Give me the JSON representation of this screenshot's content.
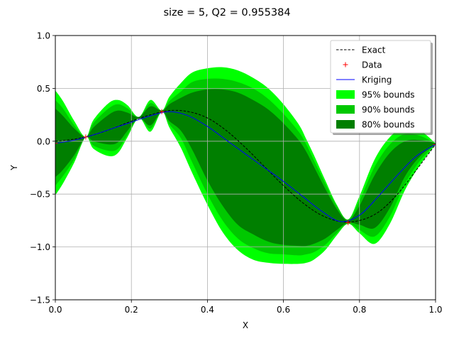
{
  "chart_data": {
    "type": "line",
    "title": "size = 5, Q2 = 0.955384",
    "xlabel": "X",
    "ylabel": "Y",
    "xlim": [
      0,
      1
    ],
    "ylim": [
      -1.5,
      1.0
    ],
    "xticks": [
      "0.0",
      "0.2",
      "0.4",
      "0.6",
      "0.8",
      "1.0"
    ],
    "xtick_values": [
      0,
      0.2,
      0.4,
      0.6,
      0.8,
      1.0
    ],
    "yticks": [
      "−1.5",
      "−1.0",
      "−0.5",
      "0.0",
      "0.5",
      "1.0"
    ],
    "ytick_values": [
      -1.5,
      -1.0,
      -0.5,
      0.0,
      0.5,
      1.0
    ],
    "grid": true,
    "legend_position": "top-right",
    "legend": [
      "Exact",
      "Data",
      "Kriging",
      " 95% bounds",
      " 90% bounds",
      " 80% bounds"
    ],
    "data_points": {
      "name": "Data",
      "x": [
        0.0,
        0.08,
        0.28,
        0.77,
        1.0
      ],
      "y": [
        -0.02,
        0.04,
        0.28,
        -0.77,
        -0.03
      ]
    },
    "exact": {
      "name": "Exact",
      "x": [
        0.0,
        0.05,
        0.1,
        0.15,
        0.2,
        0.25,
        0.3,
        0.35,
        0.4,
        0.45,
        0.5,
        0.55,
        0.6,
        0.65,
        0.7,
        0.75,
        0.8,
        0.85,
        0.9,
        0.95,
        1.0
      ],
      "y": [
        0.0,
        0.02,
        0.06,
        0.12,
        0.19,
        0.25,
        0.29,
        0.28,
        0.22,
        0.1,
        -0.06,
        -0.24,
        -0.42,
        -0.58,
        -0.7,
        -0.76,
        -0.75,
        -0.67,
        -0.5,
        -0.27,
        -0.03
      ]
    },
    "kriging": {
      "name": "Kriging",
      "x": [
        0.0,
        0.05,
        0.1,
        0.15,
        0.2,
        0.25,
        0.3,
        0.35,
        0.4,
        0.45,
        0.5,
        0.55,
        0.6,
        0.65,
        0.7,
        0.75,
        0.8,
        0.85,
        0.9,
        0.95,
        1.0
      ],
      "y": [
        -0.02,
        0.01,
        0.06,
        0.12,
        0.18,
        0.24,
        0.28,
        0.24,
        0.14,
        0.01,
        -0.12,
        -0.25,
        -0.38,
        -0.52,
        -0.66,
        -0.76,
        -0.7,
        -0.52,
        -0.32,
        -0.14,
        -0.03
      ]
    },
    "bands": [
      {
        "name": " 95% bounds",
        "color": "#00ff00",
        "x": [
          0.0,
          0.02,
          0.05,
          0.08,
          0.1,
          0.14,
          0.165,
          0.19,
          0.22,
          0.25,
          0.28,
          0.3,
          0.33,
          0.36,
          0.4,
          0.44,
          0.48,
          0.52,
          0.56,
          0.6,
          0.64,
          0.66,
          0.68,
          0.71,
          0.74,
          0.77,
          0.8,
          0.84,
          0.88,
          0.92,
          0.96,
          1.0
        ],
        "upper": [
          0.48,
          0.38,
          0.19,
          0.04,
          0.2,
          0.36,
          0.39,
          0.34,
          0.23,
          0.39,
          0.29,
          0.42,
          0.55,
          0.65,
          0.69,
          0.7,
          0.67,
          0.6,
          0.5,
          0.35,
          0.16,
          0.02,
          -0.13,
          -0.37,
          -0.6,
          -0.74,
          -0.52,
          -0.17,
          0.04,
          0.14,
          0.1,
          -0.02
        ],
        "lower": [
          -0.51,
          -0.4,
          -0.2,
          0.04,
          -0.07,
          -0.14,
          -0.11,
          0.04,
          0.22,
          0.09,
          0.28,
          0.13,
          -0.06,
          -0.3,
          -0.6,
          -0.86,
          -1.03,
          -1.12,
          -1.15,
          -1.16,
          -1.16,
          -1.15,
          -1.12,
          -1.03,
          -0.89,
          -0.78,
          -0.87,
          -0.97,
          -0.78,
          -0.46,
          -0.22,
          -0.03
        ]
      },
      {
        "name": " 90% bounds",
        "color": "#00c800",
        "x": [
          0.0,
          0.02,
          0.05,
          0.08,
          0.1,
          0.14,
          0.165,
          0.19,
          0.22,
          0.25,
          0.28,
          0.3,
          0.33,
          0.36,
          0.4,
          0.44,
          0.48,
          0.52,
          0.56,
          0.6,
          0.64,
          0.66,
          0.68,
          0.71,
          0.74,
          0.77,
          0.8,
          0.84,
          0.88,
          0.92,
          0.96,
          1.0
        ],
        "upper": [
          0.39,
          0.31,
          0.15,
          0.04,
          0.17,
          0.31,
          0.35,
          0.31,
          0.23,
          0.36,
          0.29,
          0.38,
          0.47,
          0.56,
          0.59,
          0.59,
          0.56,
          0.5,
          0.4,
          0.26,
          0.09,
          -0.03,
          -0.18,
          -0.4,
          -0.61,
          -0.74,
          -0.56,
          -0.24,
          -0.03,
          0.07,
          0.05,
          -0.02
        ],
        "lower": [
          -0.42,
          -0.33,
          -0.17,
          0.04,
          -0.04,
          -0.09,
          -0.07,
          0.06,
          0.22,
          0.12,
          0.28,
          0.16,
          0.03,
          -0.2,
          -0.5,
          -0.75,
          -0.92,
          -1.01,
          -1.06,
          -1.07,
          -1.08,
          -1.07,
          -1.05,
          -0.98,
          -0.87,
          -0.78,
          -0.84,
          -0.9,
          -0.71,
          -0.4,
          -0.18,
          -0.03
        ]
      },
      {
        "name": " 80% bounds",
        "color": "#007f00",
        "x": [
          0.0,
          0.02,
          0.05,
          0.08,
          0.1,
          0.14,
          0.165,
          0.19,
          0.22,
          0.25,
          0.28,
          0.3,
          0.33,
          0.36,
          0.4,
          0.44,
          0.48,
          0.52,
          0.56,
          0.6,
          0.64,
          0.66,
          0.68,
          0.71,
          0.74,
          0.77,
          0.8,
          0.84,
          0.88,
          0.92,
          0.96,
          1.0
        ],
        "upper": [
          0.31,
          0.24,
          0.12,
          0.04,
          0.13,
          0.25,
          0.29,
          0.27,
          0.23,
          0.33,
          0.29,
          0.35,
          0.41,
          0.46,
          0.49,
          0.49,
          0.46,
          0.39,
          0.3,
          0.17,
          0.01,
          -0.1,
          -0.24,
          -0.45,
          -0.64,
          -0.75,
          -0.61,
          -0.32,
          -0.11,
          0.0,
          0.01,
          -0.02
        ],
        "lower": [
          -0.34,
          -0.27,
          -0.13,
          0.04,
          0.0,
          -0.03,
          -0.01,
          0.1,
          0.22,
          0.15,
          0.28,
          0.19,
          0.1,
          -0.08,
          -0.37,
          -0.61,
          -0.79,
          -0.88,
          -0.95,
          -0.98,
          -0.99,
          -0.99,
          -0.97,
          -0.92,
          -0.84,
          -0.77,
          -0.79,
          -0.82,
          -0.63,
          -0.33,
          -0.14,
          -0.03
        ]
      }
    ]
  }
}
